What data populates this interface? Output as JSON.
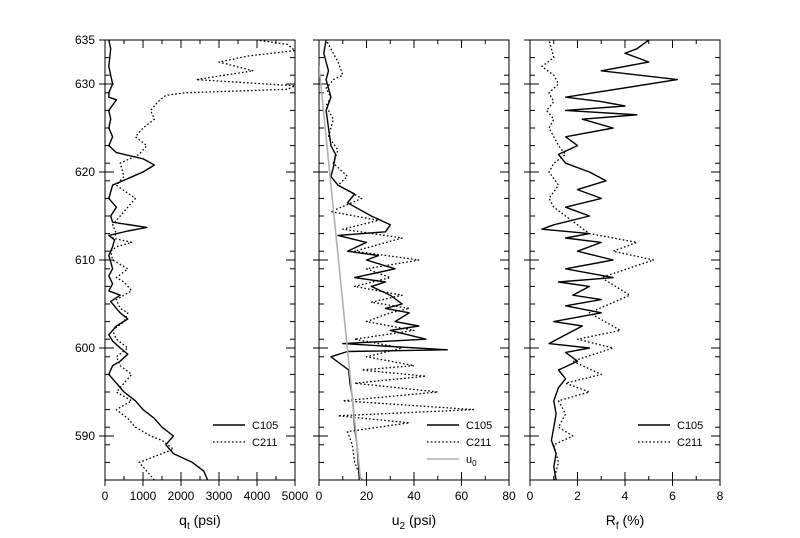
{
  "chart_data": {
    "type": "line",
    "shared_y": {
      "range": [
        585,
        635
      ],
      "major_ticks": [
        590,
        600,
        610,
        620,
        630,
        635
      ],
      "minor_step": 2,
      "tick_labels": [
        "590",
        "600",
        "610",
        "620",
        "630",
        "635"
      ]
    },
    "panels": [
      {
        "id": "qt",
        "xlabel_main": "q",
        "xlabel_sub": "t",
        "xlabel_unit": " (psi)",
        "xlim": [
          0,
          5000
        ],
        "x_major_ticks": [
          0,
          1000,
          2000,
          3000,
          4000,
          5000
        ],
        "x_minor_step": 500,
        "x_tick_labels": [
          "0",
          "1000",
          "2000",
          "3000",
          "4000",
          "5000"
        ],
        "legend": [
          {
            "label": "C105",
            "style": "solid"
          },
          {
            "label": "C211",
            "style": "dotted"
          }
        ],
        "series": [
          {
            "name": "C105",
            "style": "solid",
            "x": [
              2700,
              2600,
              2300,
              1800,
              1600,
              1800,
              1500,
              1300,
              1000,
              800,
              500,
              300,
              100,
              200,
              400,
              600,
              400,
              200,
              100,
              300,
              600,
              400,
              300,
              150,
              400,
              100,
              200,
              100,
              200,
              150,
              100,
              200,
              250,
              100,
              600,
              1100,
              200,
              150,
              300,
              100,
              200,
              1000,
              1300,
              1000,
              300,
              100,
              200,
              100,
              150,
              100,
              300,
              100,
              100,
              200,
              100,
              150,
              100
            ],
            "y": [
              585,
              586,
              587,
              588,
              589,
              590,
              591,
              592,
              593,
              594,
              595,
              596,
              597,
              598,
              598.5,
              599.3,
              600,
              600.8,
              601.5,
              602.5,
              603.3,
              604,
              604.5,
              605.3,
              606,
              606.5,
              607.3,
              608.2,
              609,
              609.8,
              610.5,
              611.5,
              612.3,
              612.8,
              613.3,
              613.7,
              614.3,
              615,
              616,
              617,
              618.5,
              620,
              620.8,
              621.5,
              622.2,
              623,
              624,
              625,
              626,
              627,
              628.2,
              628.5,
              629,
              630,
              632,
              634,
              635
            ]
          },
          {
            "name": "C211",
            "style": "dotted",
            "x": [
              1300,
              900,
              1800,
              1500,
              1200,
              800,
              600,
              300,
              700,
              300,
              500,
              700,
              400,
              300,
              600,
              300,
              200,
              500,
              600,
              400,
              300,
              700,
              500,
              300,
              600,
              200,
              150,
              300,
              700,
              200,
              300,
              200,
              500,
              800,
              300,
              500,
              400,
              900,
              1100,
              800,
              1000,
              1300,
              1200,
              1400,
              1600,
              2100,
              4800,
              5000,
              2400,
              3900,
              3000,
              3800,
              5000,
              4800,
              4000
            ],
            "y": [
              585,
              587,
              588.5,
              589.5,
              590,
              591,
              592,
              593,
              594,
              595,
              596,
              597,
              598,
              599,
              600,
              601,
              602,
              603,
              604,
              604.5,
              605.5,
              606.5,
              607.5,
              608,
              609,
              610,
              611,
              611.5,
              612,
              612.5,
              613,
              614,
              615.5,
              617,
              618.5,
              619.5,
              621,
              622,
              623,
              624,
              625,
              626,
              627,
              628,
              628.7,
              629,
              629.4,
              629.8,
              630.5,
              631.5,
              632.5,
              633.2,
              633.8,
              634.5,
              635
            ]
          }
        ]
      },
      {
        "id": "u2",
        "xlabel_main": "u",
        "xlabel_sub": "2",
        "xlabel_unit": " (psi)",
        "xlim": [
          0,
          80
        ],
        "x_major_ticks": [
          0,
          20,
          40,
          60,
          80
        ],
        "x_minor_step": 10,
        "x_tick_labels": [
          "0",
          "20",
          "40",
          "60",
          "80"
        ],
        "legend": [
          {
            "label": "C105",
            "style": "solid"
          },
          {
            "label": "C211",
            "style": "dotted"
          },
          {
            "label": "u",
            "sub": "0",
            "style": "gray"
          }
        ],
        "series": [
          {
            "name": "C105",
            "style": "solid",
            "x": [
              17,
              16.5,
              16,
              15,
              14.5,
              14,
              13,
              12.5,
              5,
              12,
              54,
              10,
              45,
              30,
              42,
              32,
              38,
              28,
              35,
              30,
              22,
              28,
              15,
              32,
              20,
              25,
              12,
              20,
              8,
              28,
              30,
              22,
              12,
              15,
              8,
              5,
              6,
              7,
              5,
              4,
              3,
              5,
              4,
              3,
              4,
              3,
              2,
              3
            ],
            "y": [
              585,
              587,
              589,
              591,
              593,
              594.5,
              596,
              597.5,
              599,
              599.6,
              599.8,
              600.5,
              601,
              602,
              602.5,
              603,
              604,
              604.5,
              605,
              606,
              607,
              607.5,
              608,
              609,
              610,
              610.5,
              611,
              612,
              612.8,
              613.2,
              614,
              615,
              616.5,
              617.5,
              618.5,
              619.5,
              620.5,
              622,
              623,
              625,
              627,
              628.5,
              629.5,
              630.5,
              631.5,
              632.5,
              633.5,
              635
            ]
          },
          {
            "name": "C211",
            "style": "dotted",
            "x": [
              18,
              15,
              14,
              12,
              38,
              8,
              65,
              10,
              50,
              15,
              45,
              18,
              40,
              20,
              35,
              15,
              40,
              20,
              30,
              38,
              22,
              35,
              15,
              30,
              20,
              42,
              15,
              35,
              10,
              25,
              5,
              18,
              8,
              12,
              6,
              8,
              4,
              6,
              3,
              5,
              3,
              6,
              10,
              8,
              3
            ],
            "y": [
              585,
              587,
              589,
              590.5,
              591.5,
              592.3,
              593,
              594,
              595,
              596,
              596.8,
              597.5,
              598,
              599,
              600,
              601,
              602,
              603,
              604,
              604.5,
              605.2,
              606,
              607,
              608,
              609,
              610,
              611,
              612.5,
              613.5,
              614.5,
              615.5,
              617,
              618.5,
              619.5,
              621,
              622.5,
              624,
              626,
              627.5,
              628.5,
              629.5,
              630.5,
              631,
              632.5,
              635
            ]
          },
          {
            "name": "u0",
            "style": "gray",
            "x": [
              17.5,
              0
            ],
            "y": [
              585,
              632
            ]
          }
        ]
      },
      {
        "id": "rf",
        "xlabel_main": "R",
        "xlabel_sub": "f",
        "xlabel_unit": " (%)",
        "xlim": [
          0,
          8
        ],
        "x_major_ticks": [
          0,
          2,
          4,
          6,
          8
        ],
        "x_minor_step": 1,
        "x_tick_labels": [
          "0",
          "2",
          "4",
          "6",
          "8"
        ],
        "legend": [
          {
            "label": "C105",
            "style": "solid"
          },
          {
            "label": "C211",
            "style": "dotted"
          }
        ],
        "series": [
          {
            "name": "C105",
            "style": "solid",
            "x": [
              1.1,
              1,
              1.1,
              0.9,
              1,
              1.1,
              1,
              1.2,
              1.5,
              1.2,
              2,
              1.5,
              2.5,
              0.8,
              1.5,
              2.2,
              1,
              3,
              1.5,
              3,
              1.8,
              2.5,
              1.2,
              3.5,
              1.5,
              3.5,
              2,
              3,
              1.5,
              2.5,
              0.5,
              1,
              2.5,
              1.5,
              3,
              2,
              3.2,
              2.5,
              1.5,
              1.2,
              2,
              1.5,
              3.5,
              2.2,
              4.5,
              1.5,
              4,
              3,
              1.5,
              6.2,
              3,
              5,
              4,
              4.5,
              5
            ],
            "y": [
              585,
              586.5,
              588,
              589.5,
              591,
              592.5,
              594,
              595.5,
              596.5,
              597.5,
              598.5,
              599.5,
              600,
              600.5,
              601.5,
              602.5,
              603,
              604,
              604.8,
              605.5,
              606,
              607,
              607.5,
              608,
              609,
              610,
              611,
              612,
              612.5,
              613,
              613.5,
              614,
              615,
              616,
              617,
              618,
              619,
              620,
              621,
              622,
              623,
              624,
              625,
              626,
              626.5,
              627,
              627.5,
              628,
              628.5,
              630.5,
              631.5,
              632.5,
              633.5,
              634,
              635
            ]
          },
          {
            "name": "C211",
            "style": "dotted",
            "x": [
              1,
              1.2,
              1,
              1.8,
              1.2,
              1.5,
              1.2,
              2.5,
              1.5,
              3,
              1.8,
              3.5,
              2,
              3.8,
              2.5,
              4.2,
              3,
              5.2,
              3.5,
              4.5,
              2.5,
              2,
              1.5,
              1,
              0.8,
              1.2,
              0.8,
              1,
              1.5,
              1.2,
              1,
              0.8,
              1,
              0.7,
              1,
              0.8,
              1.2,
              1,
              0.5,
              1,
              0.8
            ],
            "y": [
              585,
              587,
              589,
              590,
              591,
              592.5,
              594,
              595,
              596,
              597,
              598.5,
              600,
              601,
              602,
              604,
              606,
              608,
              610,
              611,
              612,
              613,
              614,
              615,
              616,
              617,
              618.5,
              620,
              621,
              622,
              623,
              624,
              625,
              626,
              627,
              628,
              629,
              630,
              631,
              632,
              633,
              635
            ]
          }
        ]
      }
    ]
  }
}
